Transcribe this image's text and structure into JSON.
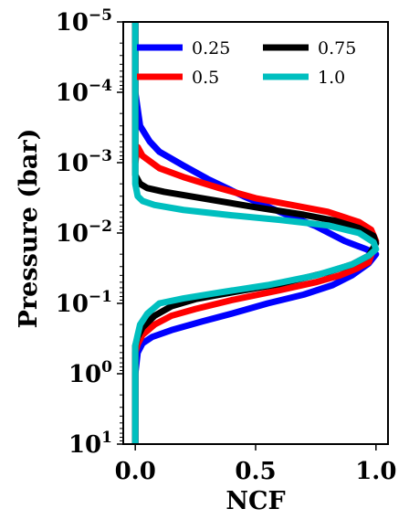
{
  "chart_data": {
    "type": "line",
    "title": "",
    "xlabel": "NCF",
    "ylabel": "Pressure (bar)",
    "xlim": [
      -0.05,
      1.05
    ],
    "ylim": [
      10,
      1e-05
    ],
    "yscale": "log",
    "y_inverted": true,
    "grid": false,
    "legend_placement": "top",
    "x_ticks": [
      {
        "value": 0.0,
        "label": "0.0"
      },
      {
        "value": 0.5,
        "label": "0.5"
      },
      {
        "value": 1.0,
        "label": "1.0"
      }
    ],
    "y_ticks": [
      {
        "value": 1e-05,
        "base": "10",
        "exp": "−5"
      },
      {
        "value": 0.0001,
        "base": "10",
        "exp": "−4"
      },
      {
        "value": 0.001,
        "base": "10",
        "exp": "−3"
      },
      {
        "value": 0.01,
        "base": "10",
        "exp": "−2"
      },
      {
        "value": 0.1,
        "base": "10",
        "exp": "−1"
      },
      {
        "value": 1,
        "base": "10",
        "exp": "0"
      },
      {
        "value": 10,
        "base": "10",
        "exp": "1"
      }
    ],
    "series": [
      {
        "name": "0.25",
        "color": "#0000ff",
        "points": [
          [
            0.0,
            1e-05
          ],
          [
            0.0,
            0.0001
          ],
          [
            0.02,
            0.0003
          ],
          [
            0.06,
            0.0005
          ],
          [
            0.1,
            0.0007
          ],
          [
            0.2,
            0.0011
          ],
          [
            0.3,
            0.0017
          ],
          [
            0.45,
            0.003
          ],
          [
            0.6,
            0.005
          ],
          [
            0.75,
            0.008
          ],
          [
            0.87,
            0.013
          ],
          [
            0.96,
            0.017
          ],
          [
            1.0,
            0.02
          ],
          [
            0.97,
            0.027
          ],
          [
            0.9,
            0.04
          ],
          [
            0.82,
            0.055
          ],
          [
            0.7,
            0.075
          ],
          [
            0.55,
            0.1
          ],
          [
            0.4,
            0.14
          ],
          [
            0.28,
            0.18
          ],
          [
            0.15,
            0.24
          ],
          [
            0.07,
            0.3
          ],
          [
            0.03,
            0.37
          ],
          [
            0.01,
            0.5
          ],
          [
            0.0,
            1
          ],
          [
            0.0,
            10
          ]
        ]
      },
      {
        "name": "0.5",
        "color": "#ff0000",
        "points": [
          [
            0.0,
            1e-05
          ],
          [
            0.0,
            0.001
          ],
          [
            0.01,
            0.0006
          ],
          [
            0.03,
            0.0008
          ],
          [
            0.1,
            0.0012
          ],
          [
            0.2,
            0.0016
          ],
          [
            0.35,
            0.0023
          ],
          [
            0.5,
            0.0032
          ],
          [
            0.65,
            0.004
          ],
          [
            0.8,
            0.005
          ],
          [
            0.93,
            0.007
          ],
          [
            0.98,
            0.009
          ],
          [
            1.0,
            0.013
          ],
          [
            0.97,
            0.026
          ],
          [
            0.92,
            0.032
          ],
          [
            0.85,
            0.04
          ],
          [
            0.75,
            0.05
          ],
          [
            0.6,
            0.065
          ],
          [
            0.4,
            0.09
          ],
          [
            0.25,
            0.12
          ],
          [
            0.15,
            0.15
          ],
          [
            0.08,
            0.2
          ],
          [
            0.03,
            0.28
          ],
          [
            0.01,
            0.38
          ],
          [
            0.0,
            0.5
          ],
          [
            0.0,
            1
          ],
          [
            0.0,
            10
          ]
        ]
      },
      {
        "name": "0.75",
        "color": "#000000",
        "points": [
          [
            0.0,
            1e-05
          ],
          [
            0.0,
            0.0015
          ],
          [
            0.02,
            0.002
          ],
          [
            0.05,
            0.0023
          ],
          [
            0.12,
            0.0026
          ],
          [
            0.3,
            0.0033
          ],
          [
            0.5,
            0.0043
          ],
          [
            0.7,
            0.0055
          ],
          [
            0.83,
            0.0067
          ],
          [
            0.93,
            0.0085
          ],
          [
            0.99,
            0.011
          ],
          [
            1.0,
            0.014
          ],
          [
            0.97,
            0.021
          ],
          [
            0.9,
            0.028
          ],
          [
            0.8,
            0.036
          ],
          [
            0.6,
            0.053
          ],
          [
            0.4,
            0.07
          ],
          [
            0.25,
            0.087
          ],
          [
            0.15,
            0.11
          ],
          [
            0.08,
            0.15
          ],
          [
            0.03,
            0.22
          ],
          [
            0.01,
            0.3
          ],
          [
            0.0,
            0.4
          ],
          [
            0.0,
            1
          ],
          [
            0.0,
            10
          ]
        ]
      },
      {
        "name": "1.0",
        "color": "#00bfbf",
        "points": [
          [
            0.0,
            1e-05
          ],
          [
            0.0,
            0.002
          ],
          [
            0.01,
            0.003
          ],
          [
            0.03,
            0.0035
          ],
          [
            0.08,
            0.004
          ],
          [
            0.2,
            0.0047
          ],
          [
            0.4,
            0.0056
          ],
          [
            0.6,
            0.0065
          ],
          [
            0.8,
            0.0078
          ],
          [
            0.93,
            0.01
          ],
          [
            0.99,
            0.0135
          ],
          [
            1.0,
            0.017
          ],
          [
            0.97,
            0.021
          ],
          [
            0.9,
            0.028
          ],
          [
            0.75,
            0.04
          ],
          [
            0.55,
            0.055
          ],
          [
            0.35,
            0.07
          ],
          [
            0.2,
            0.085
          ],
          [
            0.1,
            0.1
          ],
          [
            0.05,
            0.14
          ],
          [
            0.02,
            0.2
          ],
          [
            0.01,
            0.28
          ],
          [
            0.0,
            0.4
          ],
          [
            0.0,
            1
          ],
          [
            0.0,
            10
          ]
        ]
      }
    ]
  }
}
